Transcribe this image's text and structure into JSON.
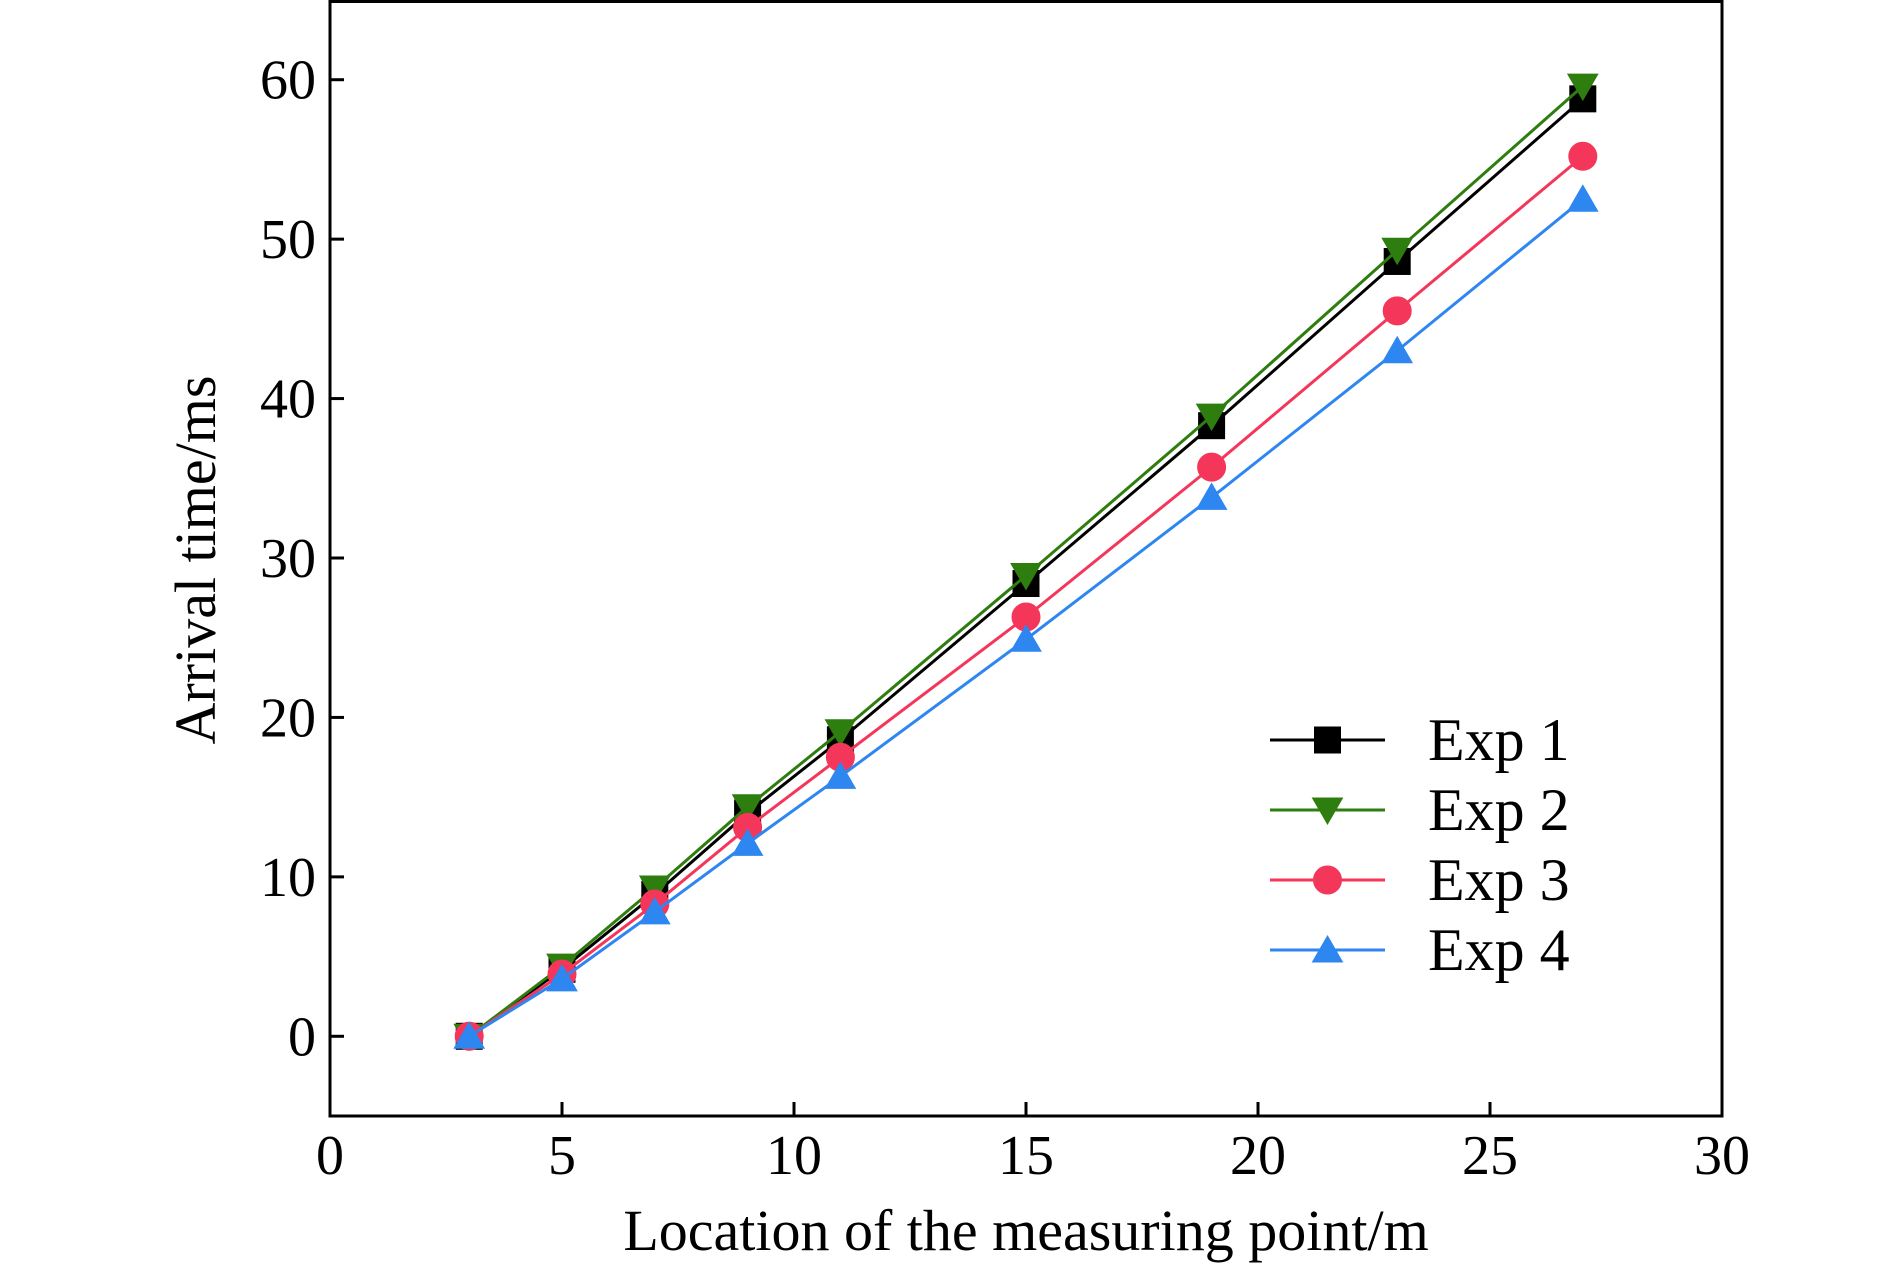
{
  "chart_data": {
    "type": "line",
    "title": "",
    "xlabel": "Location of the measuring point/m",
    "ylabel": "Arrival time/ms",
    "xlim": [
      0,
      30
    ],
    "ylim": [
      -5,
      65
    ],
    "xticks": [
      0,
      5,
      10,
      15,
      20,
      25,
      30
    ],
    "yticks": [
      0,
      10,
      20,
      30,
      40,
      50,
      60
    ],
    "grid": false,
    "legend_position": "bottom-right",
    "x": [
      3,
      5,
      7,
      9,
      11,
      15,
      19,
      23,
      27
    ],
    "series": [
      {
        "name": "Exp 1",
        "color": "#000000",
        "marker": "square",
        "values": [
          0,
          4.2,
          8.9,
          14.0,
          18.6,
          28.4,
          38.3,
          48.6,
          58.8
        ]
      },
      {
        "name": "Exp 2",
        "color": "#2e7d0f",
        "marker": "triangle-down",
        "values": [
          0,
          4.4,
          9.3,
          14.4,
          19.1,
          28.9,
          38.9,
          49.3,
          59.6
        ]
      },
      {
        "name": "Exp 3",
        "color": "#f4365a",
        "marker": "circle",
        "values": [
          0,
          3.9,
          8.3,
          13.1,
          17.5,
          26.3,
          35.7,
          45.5,
          55.2
        ]
      },
      {
        "name": "Exp 4",
        "color": "#2e86f0",
        "marker": "triangle-up",
        "values": [
          0,
          3.6,
          7.8,
          12.1,
          16.3,
          24.9,
          33.8,
          43.0,
          52.5
        ]
      }
    ]
  }
}
